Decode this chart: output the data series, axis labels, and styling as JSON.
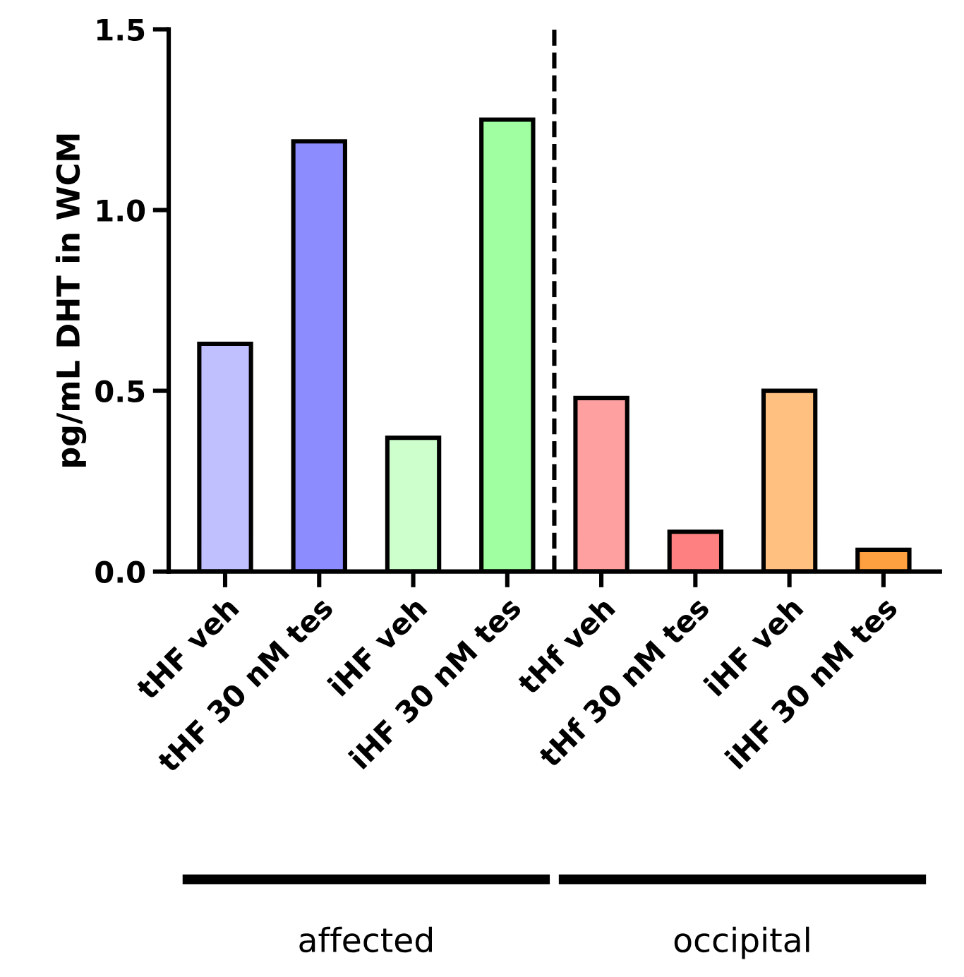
{
  "chart_data": {
    "type": "bar",
    "ylabel": "pg/mL DHT in WCM",
    "categories": [
      "tHF veh",
      "tHF 30 nM tes",
      "iHF veh",
      "iHF 30 nM tes",
      "tHf veh",
      "tHf 30 nM tes",
      "iHF veh",
      "iHF 30 nM tes"
    ],
    "values": [
      0.63,
      1.19,
      0.37,
      1.25,
      0.48,
      0.11,
      0.5,
      0.06
    ],
    "colors": [
      "#c0c0ff",
      "#8c8cff",
      "#ccffcc",
      "#a0ffa0",
      "#ffa0a0",
      "#ff8080",
      "#ffc080",
      "#ffa040"
    ],
    "ylim": [
      0,
      1.5
    ],
    "yticks": [
      {
        "value": 0,
        "label": "0.0"
      },
      {
        "value": 0.5,
        "label": "0.5"
      },
      {
        "value": 1,
        "label": "1.0"
      },
      {
        "value": 1.5,
        "label": "1.5"
      }
    ],
    "annotations": [
      "affected",
      "occipital"
    ],
    "grid": false,
    "legend": false
  }
}
